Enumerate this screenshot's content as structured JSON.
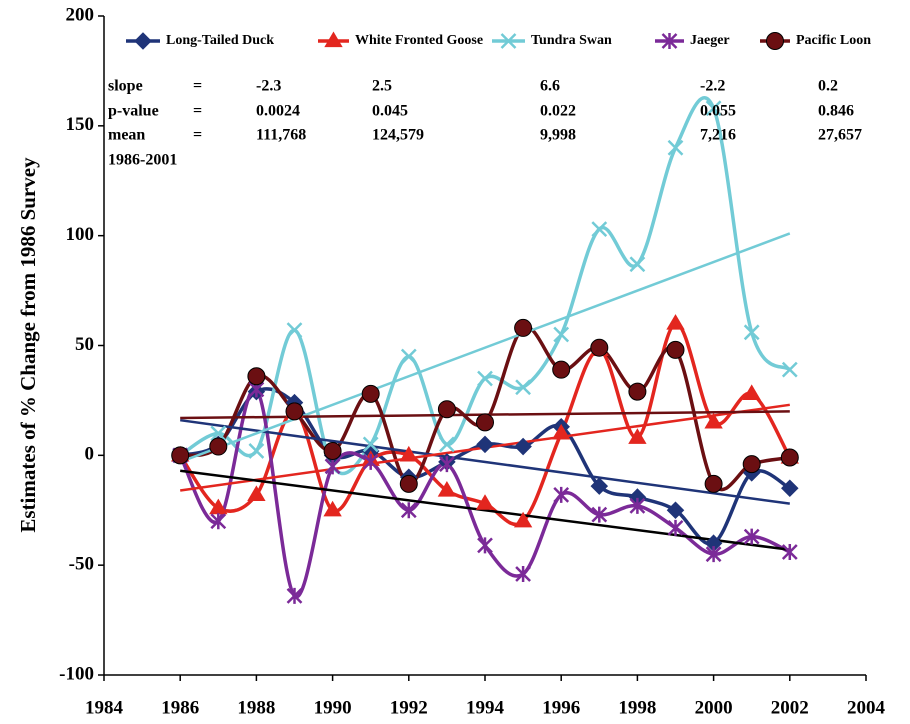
{
  "chart_data": {
    "type": "line",
    "y_label": "Estimates of % Change from 1986 Survey",
    "xlim": [
      1984,
      2004
    ],
    "xticks": [
      1984,
      1986,
      1988,
      1990,
      1992,
      1994,
      1996,
      1998,
      2000,
      2002,
      2004
    ],
    "ylim": [
      -100,
      200
    ],
    "yticks": [
      -100,
      -50,
      0,
      50,
      100,
      150,
      200
    ],
    "x": [
      1986,
      1987,
      1988,
      1989,
      1990,
      1991,
      1992,
      1993,
      1994,
      1995,
      1996,
      1997,
      1998,
      1999,
      2000,
      2001,
      2002
    ],
    "trend_x": [
      1986,
      2002
    ],
    "stats_labels": [
      "slope",
      "p-value",
      "mean",
      "1986-2001"
    ],
    "equals": "=",
    "series": [
      {
        "name": "Long-Tailed Duck",
        "color": "#1f3478",
        "marker": "diamond",
        "values": [
          0,
          5,
          29,
          24,
          0,
          2,
          -10,
          -3,
          5,
          4,
          13,
          -14,
          -19,
          -25,
          -40,
          -8,
          -15
        ],
        "trend": [
          16,
          -22
        ],
        "trend_color": "#1f3478",
        "slope": "-2.3",
        "p_value": "0.0024",
        "mean": "111,768"
      },
      {
        "name": "White Fronted Goose",
        "color": "#e3261f",
        "marker": "triangle",
        "values": [
          0,
          -24,
          -18,
          20,
          -25,
          -2,
          0,
          -16,
          -22,
          -30,
          10,
          48,
          8,
          60,
          15,
          28,
          -1
        ],
        "trend": [
          -16,
          23
        ],
        "trend_color": "#e3261f",
        "slope": "2.5",
        "p_value": "0.045",
        "mean": "124,579"
      },
      {
        "name": "Tundra Swan",
        "color": "#72cbd6",
        "marker": "x",
        "values": [
          0,
          10,
          2,
          57,
          -5,
          5,
          45,
          5,
          35,
          31,
          55,
          103,
          87,
          140,
          158,
          56,
          39
        ],
        "trend": [
          -3,
          101
        ],
        "trend_color": "#72cbd6",
        "slope": "6.6",
        "p_value": "0.022",
        "mean": "9,998"
      },
      {
        "name": "Jaeger",
        "color": "#7b2a98",
        "marker": "asterisk",
        "values": [
          0,
          -30,
          30,
          -64,
          -5,
          -3,
          -25,
          -4,
          -41,
          -54,
          -18,
          -27,
          -23,
          -33,
          -45,
          -37,
          -44
        ],
        "trend": [
          -7,
          -43
        ],
        "trend_color": "#000000",
        "slope": "-2.2",
        "p_value": "0.055",
        "mean": "7,216"
      },
      {
        "name": "Pacific Loon",
        "color": "#6b0f12",
        "marker": "circle",
        "values": [
          0,
          4,
          36,
          20,
          2,
          28,
          -13,
          21,
          15,
          58,
          39,
          49,
          29,
          48,
          -13,
          -4,
          -1
        ],
        "trend": [
          17,
          20
        ],
        "trend_color": "#6b0f12",
        "slope": "0.2",
        "p_value": "0.846",
        "mean": "27,657"
      }
    ]
  }
}
